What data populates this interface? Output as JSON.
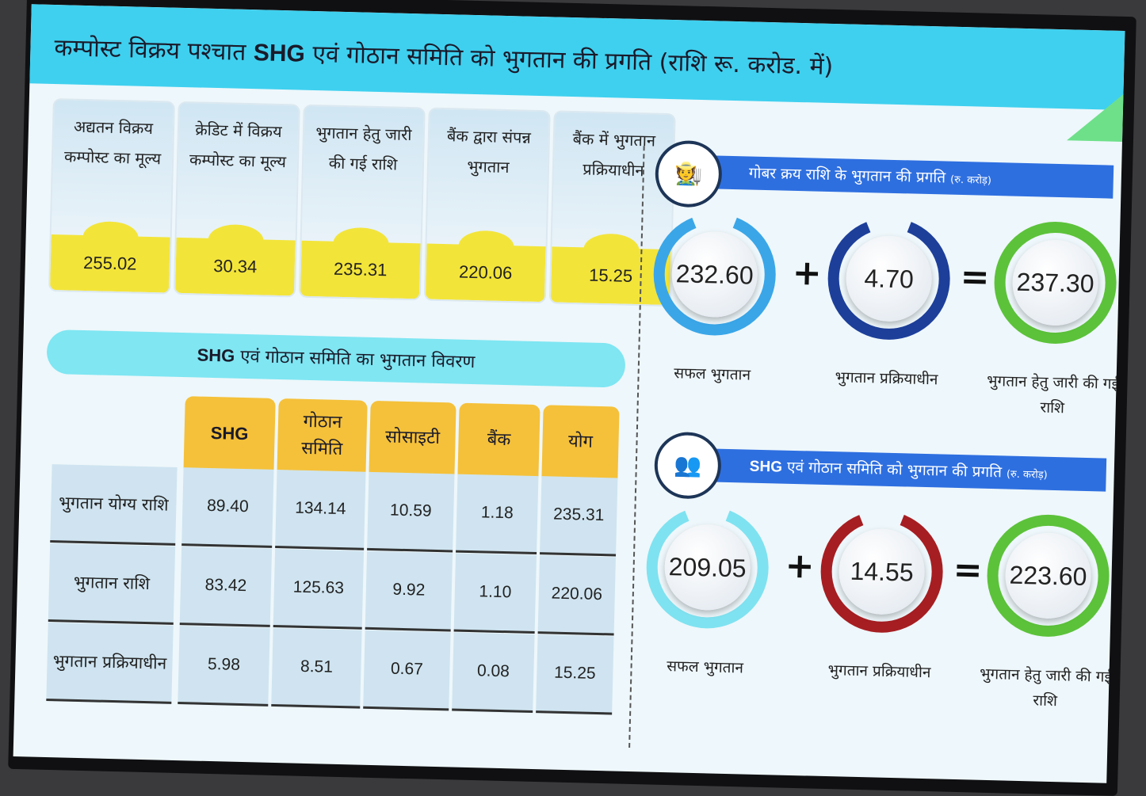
{
  "title": {
    "part1": "कम्पोस्ट विक्रय पश्चात",
    "shg": "SHG",
    "part2": "एवं गोठान समिति को भुगतान की प्रगति (राशि रू. करोड. में)"
  },
  "cards": [
    {
      "label": "अद्यतन विक्रय कम्पोस्ट का मूल्य",
      "value": "255.02"
    },
    {
      "label": "क्रेडिट में विक्रय कम्पोस्ट का मूल्य",
      "value": "30.34"
    },
    {
      "label": "भुगतान हेतु जारी की गई राशि",
      "value": "235.31"
    },
    {
      "label": "बैंक द्वारा संपन्न भुगतान",
      "value": "220.06"
    },
    {
      "label": "बैंक में भुगतान प्रक्रियाधीन",
      "value": "15.25"
    }
  ],
  "section": {
    "shg": "SHG",
    "rest": "एवं गोठान समिति का भुगतान विवरण"
  },
  "table": {
    "headers": [
      "SHG",
      "गोठान समिति",
      "सोसाइटी",
      "बैंक",
      "योग"
    ],
    "rows": [
      {
        "label": "भुगतान योग्य राशि",
        "values": [
          "89.40",
          "134.14",
          "10.59",
          "1.18",
          "235.31"
        ]
      },
      {
        "label": "भुगतान राशि",
        "values": [
          "83.42",
          "125.63",
          "9.92",
          "1.10",
          "220.06"
        ]
      },
      {
        "label": "भुगतान प्रक्रियाधीन",
        "values": [
          "5.98",
          "8.51",
          "0.67",
          "0.08",
          "15.25"
        ]
      }
    ]
  },
  "gobar": {
    "banner": "गोबर क्रय राशि के भुगतान की प्रगति",
    "unit": "(रु. करोड़)",
    "icon": "farmer-cow-icon",
    "values": [
      "232.60",
      "4.70",
      "237.30"
    ],
    "captions": [
      "सफल भुगतान",
      "भुगतान प्रक्रियाधीन",
      "भुगतान हेतु जारी की गई राशि"
    ],
    "colors": [
      "#3aa6e8",
      "#1d3f9a",
      "#5cc23a"
    ],
    "fractions": [
      0.98,
      0.02,
      1.0
    ]
  },
  "shg_progress": {
    "banner_shg": "SHG",
    "banner": "एवं गोठान समिति को भुगतान की प्रगति",
    "unit": "(रु. करोड़)",
    "icon": "people-group-icon",
    "values": [
      "209.05",
      "14.55",
      "223.60"
    ],
    "captions": [
      "सफल भुगतान",
      "भुगतान प्रक्रियाधीन",
      "भुगतान हेतु जारी की गई राशि"
    ],
    "colors": [
      "#7fe2f0",
      "#a61e22",
      "#5cc23a"
    ],
    "fractions": [
      0.93,
      0.07,
      1.0
    ]
  },
  "operators": {
    "plus": "+",
    "equals": "="
  }
}
